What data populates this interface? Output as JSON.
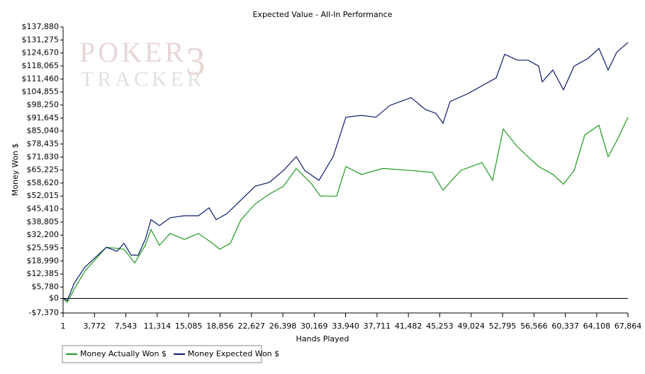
{
  "chart_data": {
    "type": "line",
    "title": "Expected Value - All-In Performance",
    "watermark": [
      "POKER",
      "TRACKER",
      "3"
    ],
    "x_label": "Hands Played",
    "y_label": "Money Won $",
    "xlim": [
      1,
      67864
    ],
    "ylim": [
      -7370,
      137880
    ],
    "xticks": [
      1,
      {
        "value": 3772,
        "label": "3,772"
      },
      {
        "value": 7543,
        "label": "7,543"
      },
      {
        "value": 11314,
        "label": "11,314"
      },
      {
        "value": 15085,
        "label": "15,085"
      },
      {
        "value": 18856,
        "label": "18,856"
      },
      {
        "value": 22627,
        "label": "22,627"
      },
      {
        "value": 26398,
        "label": "26,398"
      },
      {
        "value": 30169,
        "label": "30,169"
      },
      {
        "value": 33940,
        "label": "33,940"
      },
      {
        "value": 37711,
        "label": "37,711"
      },
      {
        "value": 41482,
        "label": "41,482"
      },
      {
        "value": 45253,
        "label": "45,253"
      },
      {
        "value": 49024,
        "label": "49,024"
      },
      {
        "value": 52795,
        "label": "52,795"
      },
      {
        "value": 56566,
        "label": "56,566"
      },
      {
        "value": 60337,
        "label": "60,337"
      },
      {
        "value": 64108,
        "label": "64,108"
      },
      {
        "value": 67864,
        "label": "67,864"
      }
    ],
    "yticks": [
      {
        "value": -7370,
        "label": "-$7,370"
      },
      {
        "value": 0,
        "label": "$0"
      },
      {
        "value": 5780,
        "label": "$5,780"
      },
      {
        "value": 12385,
        "label": "$12,385"
      },
      {
        "value": 18990,
        "label": "$18,990"
      },
      {
        "value": 25595,
        "label": "$25,595"
      },
      {
        "value": 32200,
        "label": "$32,200"
      },
      {
        "value": 38805,
        "label": "$38,805"
      },
      {
        "value": 45410,
        "label": "$45,410"
      },
      {
        "value": 52015,
        "label": "$52,015"
      },
      {
        "value": 58620,
        "label": "$58,620"
      },
      {
        "value": 65225,
        "label": "$65,225"
      },
      {
        "value": 71830,
        "label": "$71,830"
      },
      {
        "value": 78435,
        "label": "$78,435"
      },
      {
        "value": 85040,
        "label": "$85,040"
      },
      {
        "value": 91645,
        "label": "$91,645"
      },
      {
        "value": 98250,
        "label": "$98,250"
      },
      {
        "value": 104855,
        "label": "$104,855"
      },
      {
        "value": 111460,
        "label": "$111,460"
      },
      {
        "value": 118065,
        "label": "$118,065"
      },
      {
        "value": 124670,
        "label": "$124,670"
      },
      {
        "value": 131275,
        "label": "$131,275"
      },
      {
        "value": 137880,
        "label": "$137,880"
      }
    ],
    "grid": false,
    "series": [
      {
        "name": "Money Actually Won $",
        "color": "#1f9a1f",
        "x": [
          1,
          512,
          1363,
          2641,
          5195,
          7324,
          8601,
          9878,
          10560,
          11581,
          12859,
          14562,
          16265,
          17967,
          18819,
          20096,
          21373,
          23076,
          24779,
          26483,
          28016,
          29889,
          30911,
          32869,
          33976,
          35850,
          38404,
          41810,
          44365,
          45642,
          47771,
          50325,
          51603,
          52880,
          54583,
          57137,
          58840,
          60117,
          61395,
          62672,
          64375,
          65482,
          66504,
          67864
        ],
        "values": [
          0,
          -2000,
          5000,
          14000,
          26000,
          25000,
          18000,
          27000,
          35000,
          27000,
          33000,
          30000,
          33000,
          28000,
          25000,
          28000,
          40000,
          48000,
          53000,
          57000,
          66000,
          58000,
          52000,
          52000,
          67000,
          63000,
          66000,
          65000,
          64000,
          55000,
          65000,
          69000,
          60000,
          86000,
          77000,
          67000,
          63000,
          58000,
          65000,
          83000,
          88000,
          72000,
          80000,
          92000
        ]
      },
      {
        "name": "Money Expected Won $",
        "color": "#0c1a6b",
        "x": [
          1,
          512,
          1363,
          2641,
          5195,
          6473,
          7324,
          8175,
          9027,
          9878,
          10560,
          11581,
          12859,
          14562,
          16265,
          17542,
          18393,
          19670,
          21373,
          23076,
          24779,
          26483,
          28016,
          29038,
          30741,
          32444,
          33976,
          35850,
          37553,
          39256,
          41810,
          43513,
          44790,
          45642,
          46494,
          48622,
          50325,
          52028,
          53050,
          54583,
          55860,
          57137,
          57563,
          58840,
          60117,
          61395,
          63098,
          64375,
          65482,
          66504,
          67864
        ],
        "values": [
          0,
          -1000,
          8000,
          16000,
          26000,
          24000,
          28000,
          22000,
          22000,
          30000,
          40000,
          37000,
          41000,
          42000,
          42000,
          46000,
          40000,
          43000,
          50000,
          57000,
          59000,
          65000,
          72000,
          65000,
          60000,
          72000,
          92000,
          93000,
          92000,
          98000,
          102000,
          96000,
          94000,
          89000,
          100000,
          104000,
          108000,
          112000,
          124000,
          121000,
          121000,
          118000,
          110000,
          116000,
          106000,
          118000,
          122000,
          127000,
          116000,
          125000,
          130000
        ]
      }
    ],
    "legend": "bottom-left"
  }
}
